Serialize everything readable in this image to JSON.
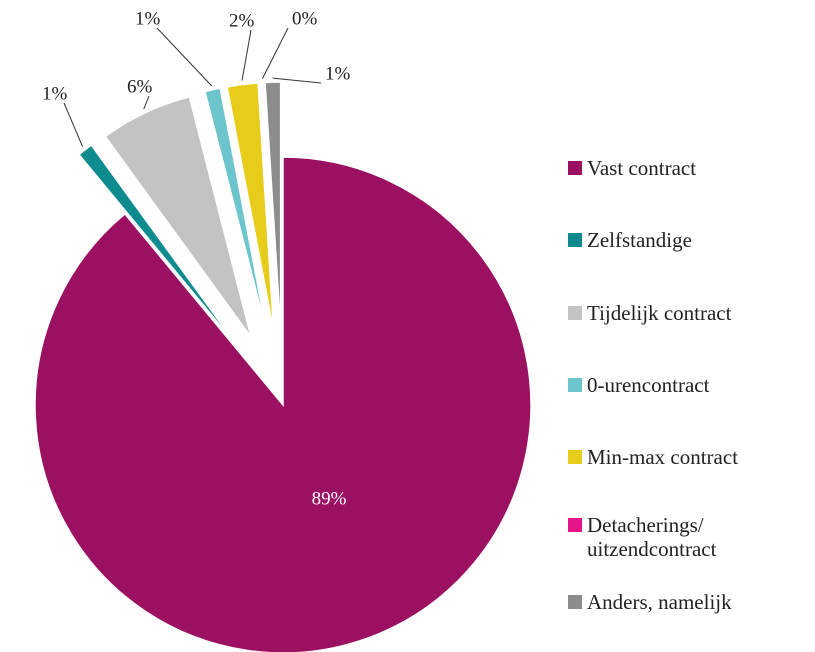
{
  "chart_data": {
    "type": "pie",
    "categories": [
      "Vast contract",
      "Zelfstandige",
      "Tijdelijk contract",
      "0-urencontract",
      "Min-max contract",
      "Detacherings/ uitzendcontract",
      "Anders, namelijk"
    ],
    "values": [
      89,
      1,
      6,
      1,
      2,
      0,
      1
    ],
    "value_labels": [
      "89%",
      "1%",
      "6%",
      "1%",
      "2%",
      "0%",
      "1%"
    ],
    "colors": [
      "#9b1060",
      "#0e8b8f",
      "#c3c3c3",
      "#6cc4cc",
      "#e8cc1a",
      "#e6168a",
      "#8c8c8c"
    ],
    "legend": "right"
  }
}
